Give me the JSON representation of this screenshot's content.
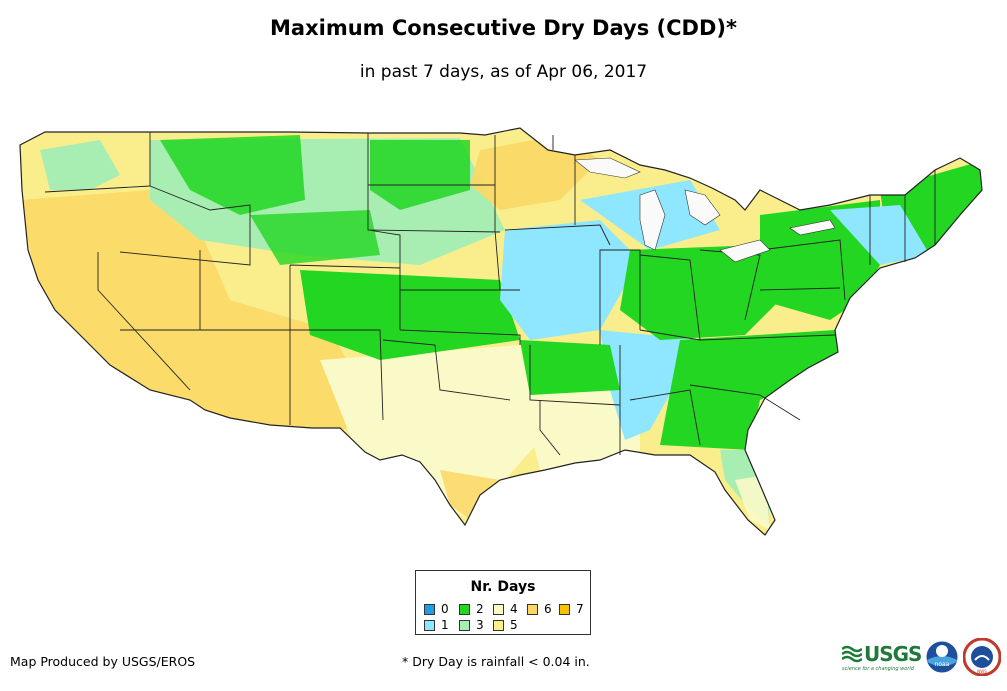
{
  "title": "Maximum Consecutive Dry Days (CDD)*",
  "subtitle": "in past 7 days, as of Apr 06, 2017",
  "legend": {
    "title": "Nr. Days",
    "items": [
      {
        "label": "0",
        "color": "#1f9ee8"
      },
      {
        "label": "1",
        "color": "#8ee6ff"
      },
      {
        "label": "2",
        "color": "#22d622"
      },
      {
        "label": "3",
        "color": "#a8eeb2"
      },
      {
        "label": "4",
        "color": "#fafac8"
      },
      {
        "label": "5",
        "color": "#faee8c"
      },
      {
        "label": "6",
        "color": "#fad764"
      },
      {
        "label": "7",
        "color": "#f7c200"
      }
    ]
  },
  "credit": "Map Produced by USGS/EROS",
  "footnote": "* Dry Day is rainfall < 0.04 in.",
  "logos": {
    "usgs_text": "USGS",
    "usgs_tagline": "science for a changing world",
    "noaa_text": "noaa",
    "nws_text": "NWS"
  }
}
